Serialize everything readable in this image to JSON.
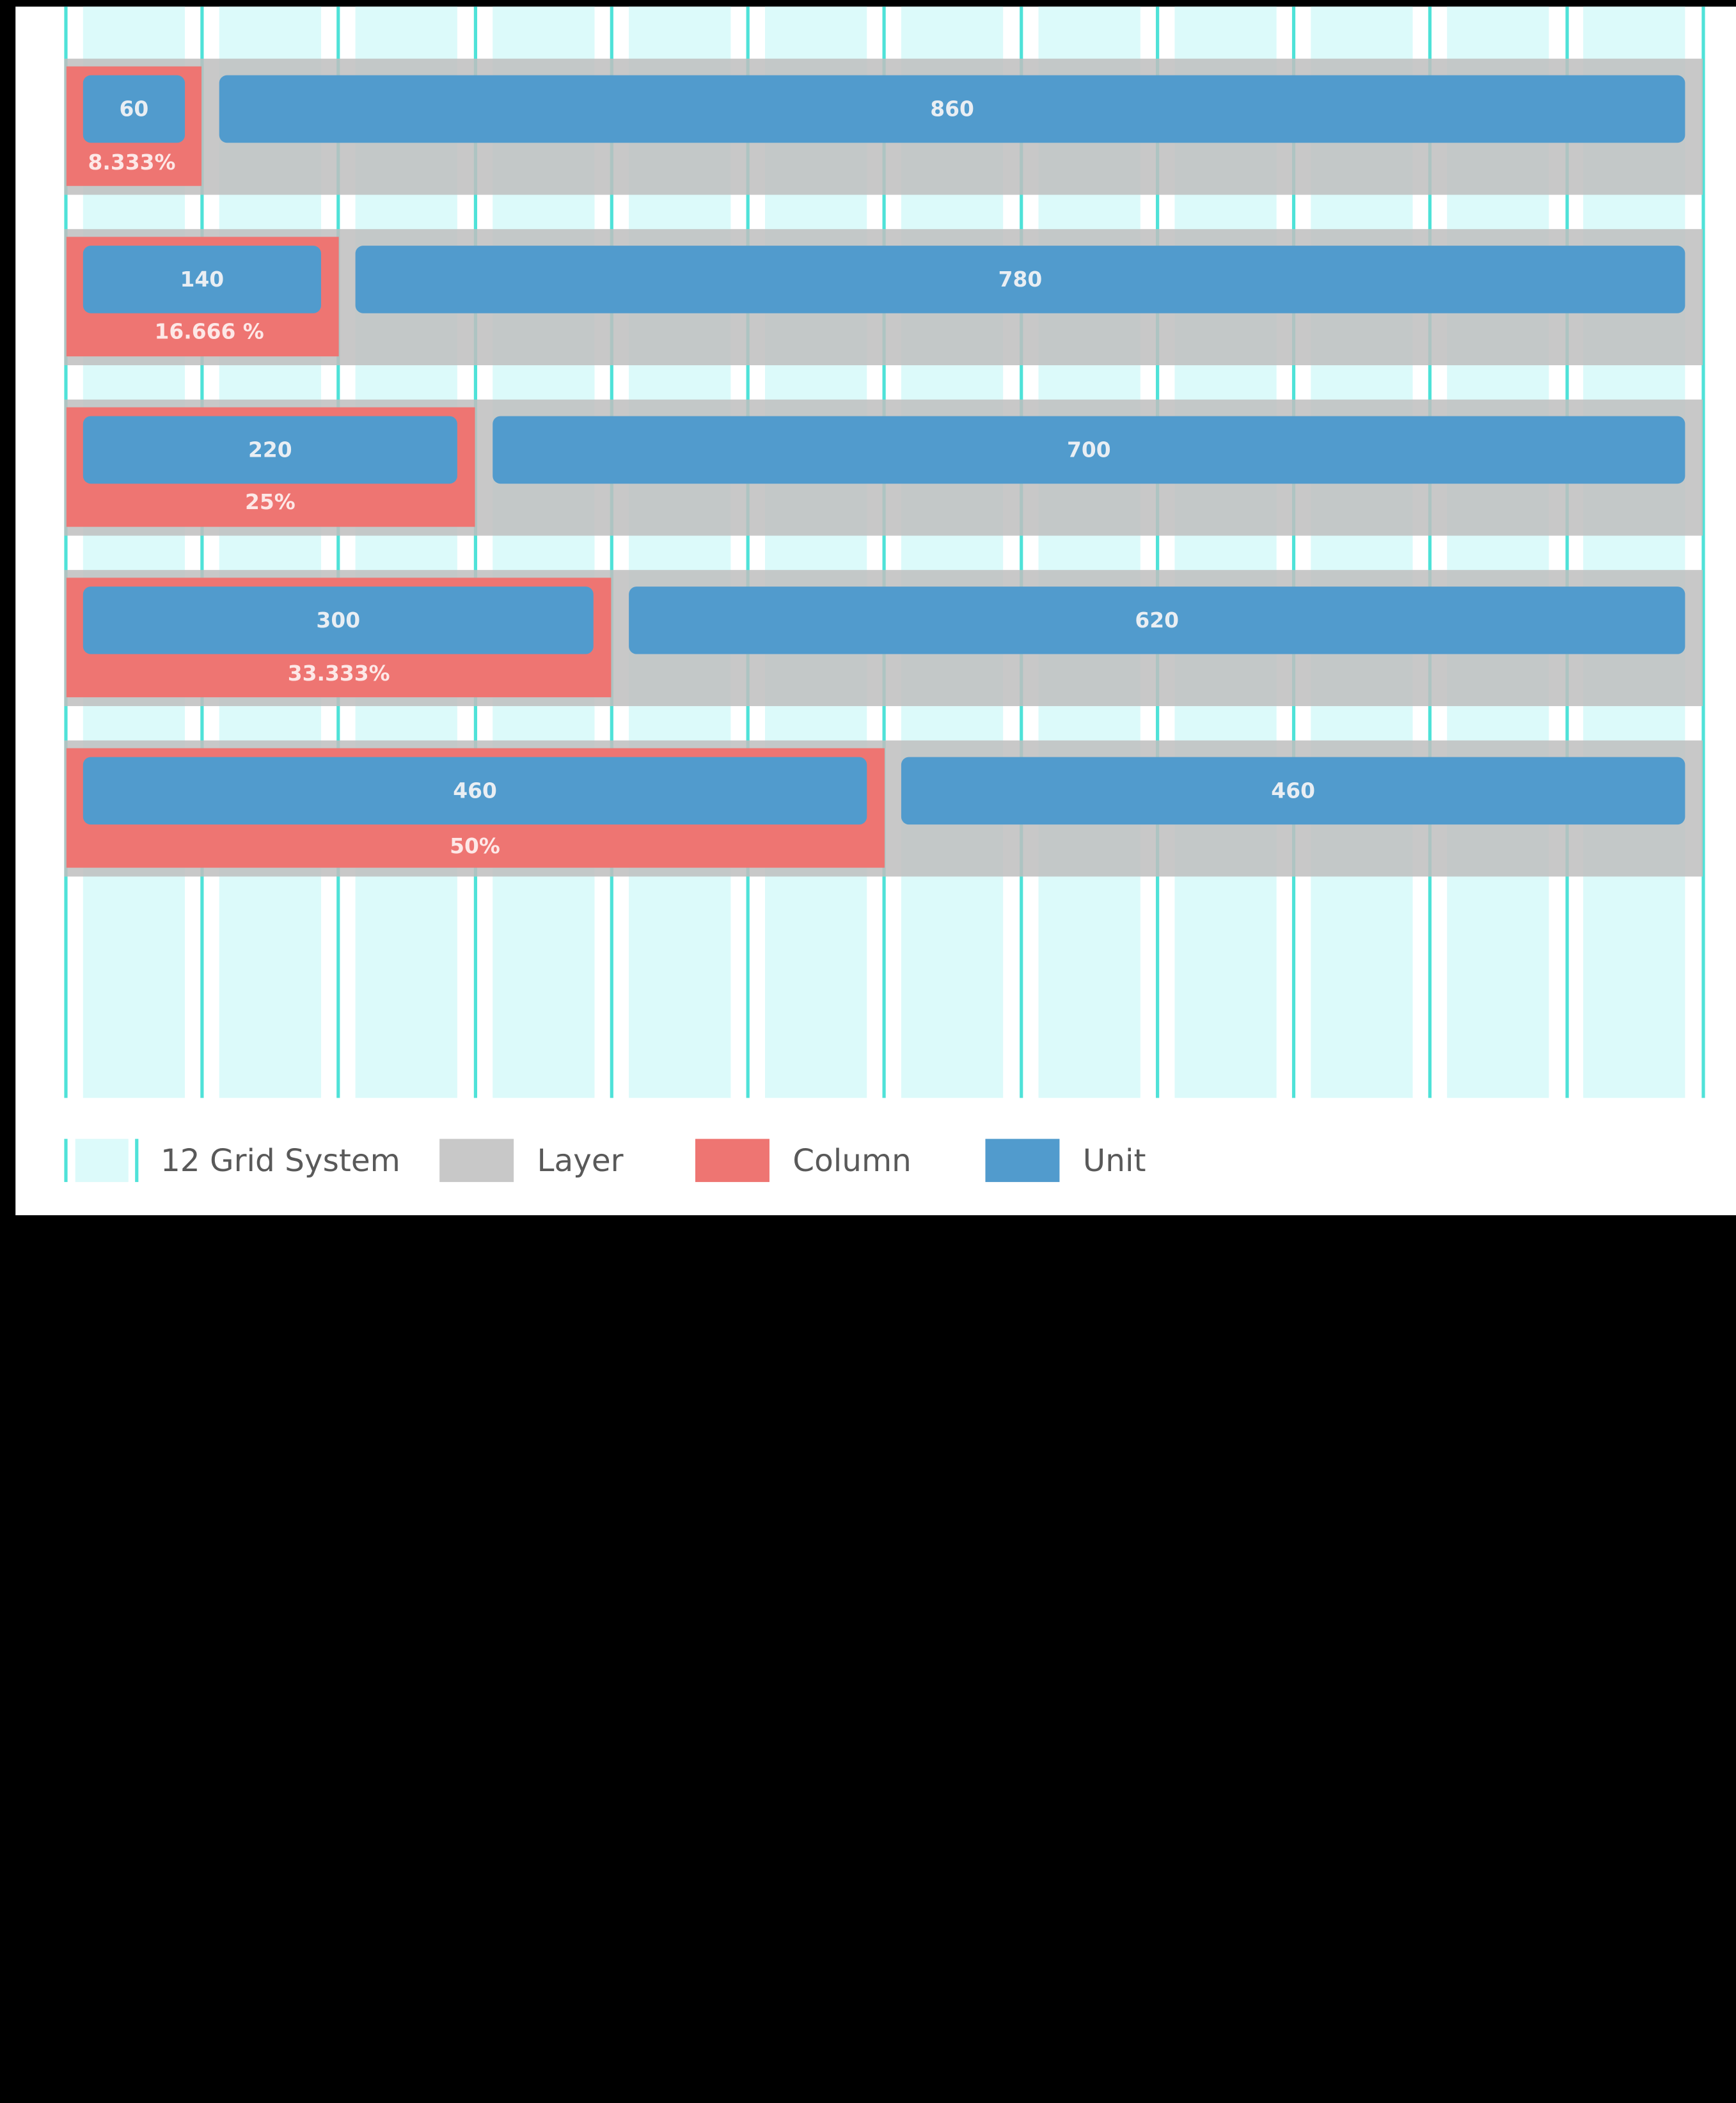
{
  "rows": [
    {
      "column_value": "60",
      "remainder_value": "860",
      "percent": "8.333%"
    },
    {
      "column_value": "140",
      "remainder_value": "780",
      "percent": "16.666 %"
    },
    {
      "column_value": "220",
      "remainder_value": "700",
      "percent": "25%"
    },
    {
      "column_value": "300",
      "remainder_value": "620",
      "percent": "33.333%"
    },
    {
      "column_value": "460",
      "remainder_value": "460",
      "percent": "50%"
    }
  ],
  "legend": {
    "grid": "12 Grid System",
    "layer": "Layer",
    "column": "Column",
    "unit": "Unit"
  },
  "colors": {
    "grid_fill": "#dcfafa",
    "grid_line": "#4fe2d8",
    "layer": "#c8c8c8",
    "column": "#ee7572",
    "unit": "#519bcd"
  }
}
